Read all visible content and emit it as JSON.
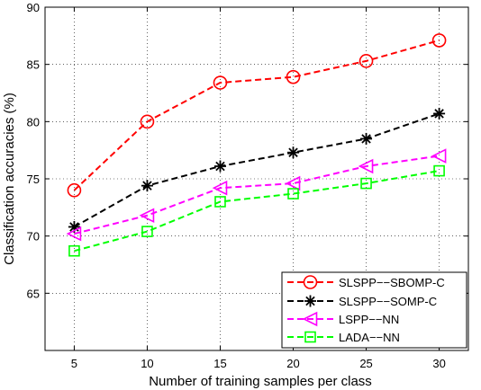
{
  "chart_data": {
    "type": "line",
    "title": "",
    "xlabel": "Number of training samples per class",
    "ylabel": "Classification accuracies (%)",
    "x": [
      5,
      10,
      15,
      20,
      25,
      30
    ],
    "xlim": [
      3,
      32
    ],
    "ylim": [
      60,
      90
    ],
    "xticks": [
      "5",
      "10",
      "15",
      "20",
      "25",
      "30"
    ],
    "yticks": [
      "65",
      "70",
      "75",
      "80",
      "85",
      "90"
    ],
    "grid": true,
    "legend_position": "bottom-right",
    "series": [
      {
        "name": "SLSPP−−SBOMP-C",
        "values": [
          74.0,
          80.0,
          83.4,
          83.9,
          85.3,
          87.1
        ],
        "color": "#ff0000",
        "marker": "circle"
      },
      {
        "name": "SLSPP−−SOMP-C",
        "values": [
          70.8,
          74.4,
          76.1,
          77.3,
          78.5,
          80.7
        ],
        "color": "#000000",
        "marker": "asterisk"
      },
      {
        "name": "LSPP−−NN",
        "values": [
          70.2,
          71.8,
          74.2,
          74.6,
          76.1,
          77.0
        ],
        "color": "#ff00ff",
        "marker": "triangle-left"
      },
      {
        "name": "LADA−−NN",
        "values": [
          68.7,
          70.4,
          73.0,
          73.7,
          74.6,
          75.7
        ],
        "color": "#00ff00",
        "marker": "square"
      }
    ]
  }
}
